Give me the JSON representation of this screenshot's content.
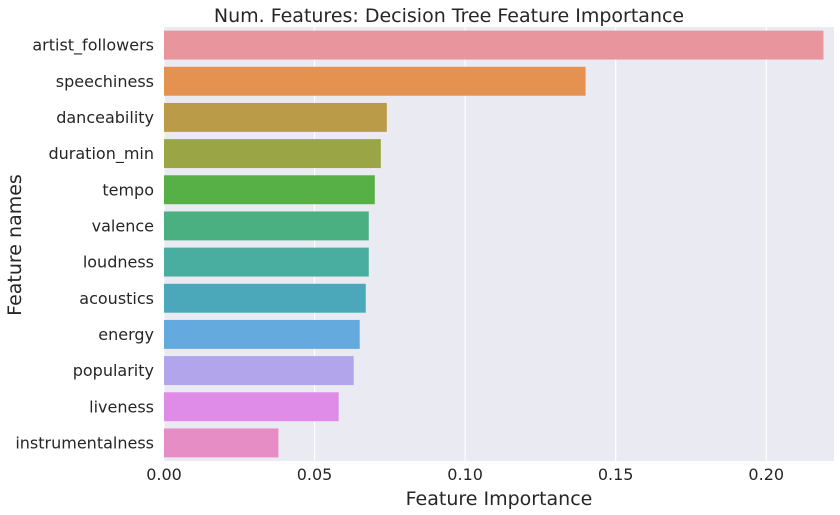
{
  "chart_data": {
    "type": "bar",
    "orientation": "horizontal",
    "title": "Num. Features: Decision Tree Feature Importance",
    "xlabel": "Feature Importance",
    "ylabel": "Feature names",
    "xlim": [
      0,
      0.2225
    ],
    "xticks": [
      0.0,
      0.05,
      0.1,
      0.15,
      0.2
    ],
    "xtick_labels": [
      "0.00",
      "0.05",
      "0.10",
      "0.15",
      "0.20"
    ],
    "grid": true,
    "background": "#EAEAF2",
    "grid_color": "#FFFFFF",
    "categories": [
      "artist_followers",
      "speechiness",
      "danceability",
      "duration_min",
      "tempo",
      "valence",
      "loudness",
      "acoustics",
      "energy",
      "popularity",
      "liveness",
      "instrumentalness"
    ],
    "values": [
      0.219,
      0.14,
      0.074,
      0.072,
      0.07,
      0.068,
      0.068,
      0.067,
      0.065,
      0.063,
      0.058,
      0.038
    ],
    "colors": [
      "#E8959E",
      "#E5914F",
      "#BA9B47",
      "#9AA546",
      "#57B046",
      "#4AB081",
      "#49AE9F",
      "#4BA8BA",
      "#64AADF",
      "#B3A5EB",
      "#DE8CE8",
      "#E68DC5"
    ]
  }
}
